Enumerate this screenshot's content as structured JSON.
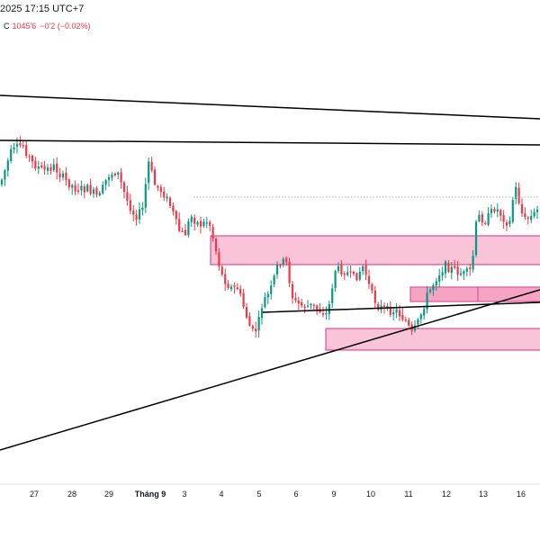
{
  "header": {
    "datetime": "2025 17:15 UTC+7",
    "close_label": "C",
    "close_value": "1045'6",
    "change": "−0'2 (−0.02%)"
  },
  "colors": {
    "up": "#089981",
    "down": "#f23645",
    "zone_fill": "#f7a9c8",
    "zone_stroke": "#d63384",
    "trendline": "#000000",
    "axis_text": "#131722"
  },
  "icons": [],
  "chart_data": {
    "type": "candlestick",
    "x_axis_labels": [
      "27",
      "28",
      "29",
      "Tháng 9",
      "3",
      "4",
      "5",
      "6",
      "9",
      "10",
      "11",
      "12",
      "13",
      "16"
    ],
    "bold_labels": [
      "Tháng 9"
    ],
    "last_close": "1045'6",
    "change": "−0'2 (−0.02%)"
  }
}
